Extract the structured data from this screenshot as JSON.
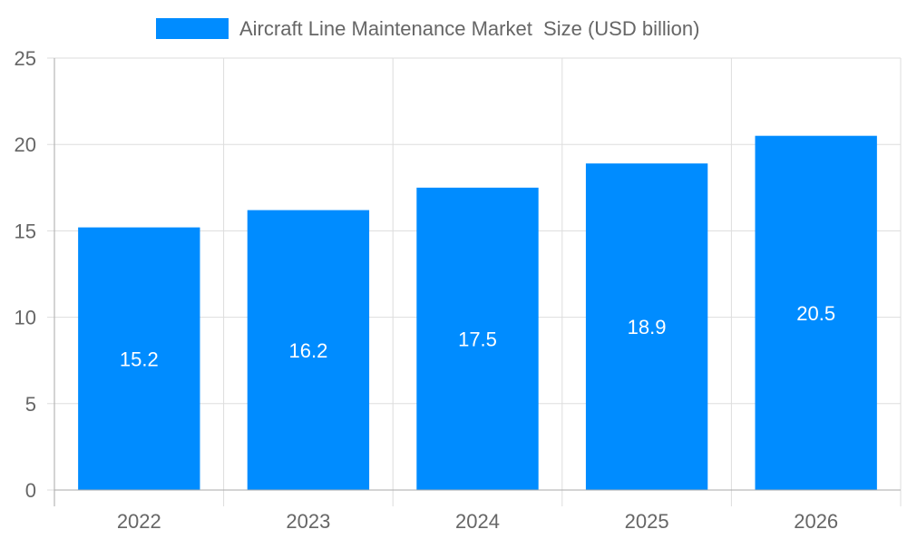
{
  "chart_data": {
    "type": "bar",
    "categories": [
      "2022",
      "2023",
      "2024",
      "2025",
      "2026"
    ],
    "series": [
      {
        "name": "Aircraft Line Maintenance Market  Size (USD billion)",
        "values": [
          15.2,
          16.2,
          17.5,
          18.9,
          20.5
        ],
        "color": "#008cff"
      }
    ],
    "data_labels": [
      "15.2",
      "16.2",
      "17.5",
      "18.9",
      "20.5"
    ],
    "ylim": [
      0,
      25
    ],
    "yticks": [
      "0",
      "5",
      "10",
      "15",
      "20",
      "25"
    ],
    "ytick_values": [
      0,
      5,
      10,
      15,
      20,
      25
    ],
    "grid": true,
    "legend": "top-center",
    "title": "",
    "xlabel": "",
    "ylabel": ""
  }
}
